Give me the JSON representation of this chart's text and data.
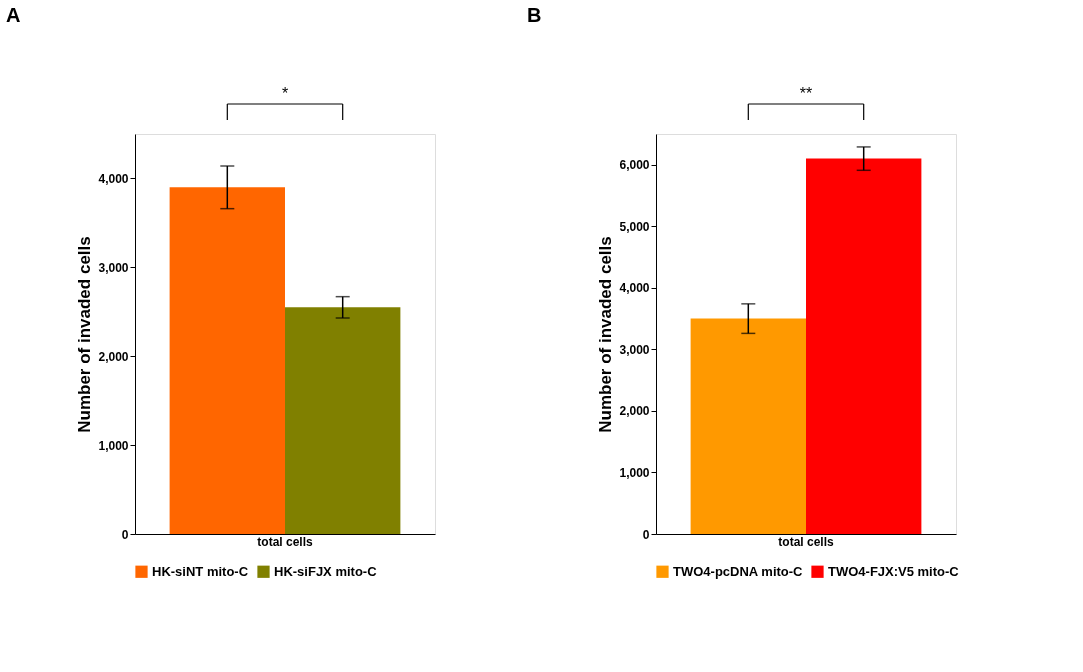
{
  "chart_data": [
    {
      "type": "bar",
      "title": "A",
      "ylabel": "Number of invaded cells",
      "categories": [
        "total cells"
      ],
      "series": [
        {
          "name": "HK-siNT mito-C",
          "color": "#ff6600",
          "values": [
            3900
          ],
          "errors": [
            240
          ]
        },
        {
          "name": "HK-siFJX mito-C",
          "color": "#808000",
          "values": [
            2550
          ],
          "errors": [
            120
          ]
        }
      ],
      "ylim": [
        0,
        4500
      ],
      "yticks": [
        0,
        {
          "value": 1000,
          "label": "1,000"
        },
        {
          "value": 2000,
          "label": "2,000"
        },
        {
          "value": 3000,
          "label": "3,000"
        },
        {
          "value": 4000,
          "label": "4,000"
        }
      ],
      "annotations": [
        "*"
      ],
      "legend": "bottom",
      "grid": false
    },
    {
      "type": "bar",
      "title": "B",
      "ylabel": "Number of invaded cells",
      "categories": [
        "total cells"
      ],
      "series": [
        {
          "name": "TWO4-pcDNA mito-C",
          "color": "#ff9900",
          "values": [
            3500
          ],
          "errors": [
            240
          ]
        },
        {
          "name": "TWO4-FJX:V5 mito-C",
          "color": "#ff0000",
          "values": [
            6100
          ],
          "errors": [
            190
          ]
        }
      ],
      "ylim": [
        0,
        6500
      ],
      "yticks": [
        0,
        {
          "value": 1000,
          "label": "1,000"
        },
        {
          "value": 2000,
          "label": "2,000"
        },
        {
          "value": 3000,
          "label": "3,000"
        },
        {
          "value": 4000,
          "label": "4,000"
        },
        {
          "value": 5000,
          "label": "5,000"
        },
        {
          "value": 6000,
          "label": "6,000"
        }
      ],
      "annotations": [
        "**"
      ],
      "legend": "bottom",
      "grid": false
    }
  ]
}
